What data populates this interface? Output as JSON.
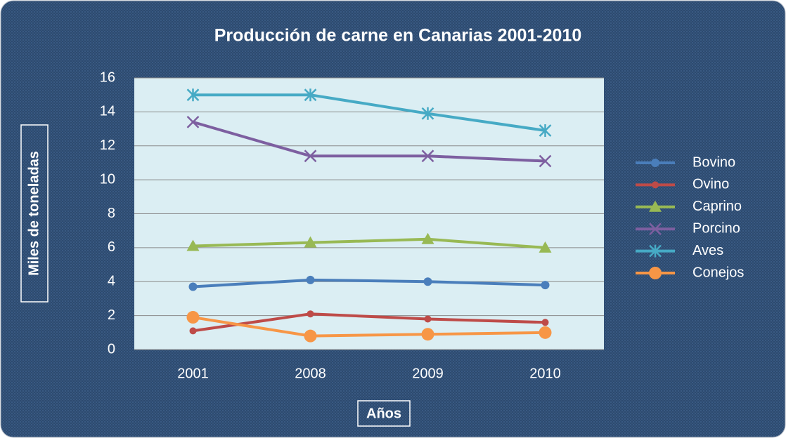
{
  "chart_data": {
    "type": "line",
    "title": "Producción de carne en Canarias 2001-2010",
    "x_label": "Años",
    "y_label": "Miles de toneladas",
    "categories": [
      "2001",
      "2008",
      "2009",
      "2010"
    ],
    "series": [
      {
        "name": "Bovino",
        "color": "#4a7ebb",
        "marker": "circle",
        "values": [
          3.7,
          4.1,
          4.0,
          3.8
        ]
      },
      {
        "name": "Ovino",
        "color": "#be4b48",
        "marker": "dot",
        "values": [
          1.1,
          2.1,
          1.8,
          1.6
        ]
      },
      {
        "name": "Caprino",
        "color": "#98b954",
        "marker": "triangle",
        "values": [
          6.1,
          6.3,
          6.5,
          6.0
        ]
      },
      {
        "name": "Porcino",
        "color": "#7d5fa0",
        "marker": "x",
        "values": [
          13.4,
          11.4,
          11.4,
          11.1
        ]
      },
      {
        "name": "Aves",
        "color": "#46aac5",
        "marker": "star",
        "values": [
          15.0,
          15.0,
          13.9,
          12.9
        ]
      },
      {
        "name": "Conejos",
        "color": "#f79646",
        "marker": "bigcircle",
        "values": [
          1.9,
          0.8,
          0.9,
          1.0
        ]
      }
    ],
    "ylim": [
      0,
      16
    ],
    "yticks": [
      0,
      2,
      4,
      6,
      8,
      10,
      12,
      14,
      16
    ],
    "grid": true,
    "legend": "right"
  }
}
